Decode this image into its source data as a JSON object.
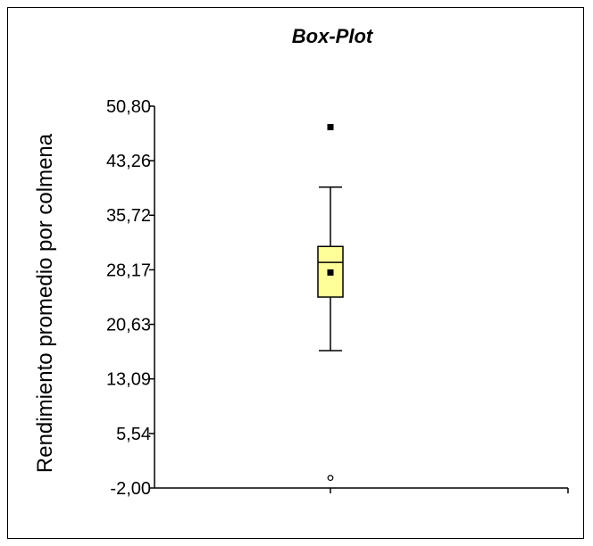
{
  "chart_data": {
    "type": "box",
    "title": "Box-Plot",
    "xlabel": "",
    "ylabel": "Rendimiento promedio por colmena",
    "ylim": [
      -2.0,
      50.8
    ],
    "y_ticks": [
      "-2,00",
      "5,54",
      "13,09",
      "20,63",
      "28,17",
      "35,72",
      "43,26",
      "50,80"
    ],
    "y_tick_values": [
      -2.0,
      5.54,
      13.09,
      20.63,
      28.17,
      35.72,
      43.26,
      50.8
    ],
    "box": {
      "whisker_low": 17.0,
      "q1": 24.4,
      "median": 29.2,
      "q3": 31.4,
      "whisker_high": 39.6,
      "mean": 27.8,
      "outliers_filled": [
        47.9
      ],
      "outliers_open": [
        -0.6
      ]
    },
    "colors": {
      "box_fill": "#ffff99",
      "marker": "#000000"
    },
    "grid": false,
    "legend": "none"
  }
}
